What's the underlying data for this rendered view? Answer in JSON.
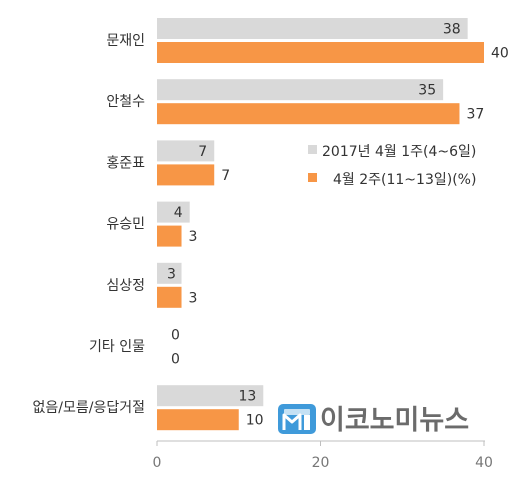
{
  "chart_data": {
    "type": "bar",
    "orientation": "horizontal",
    "categories": [
      "문재인",
      "안철수",
      "홍준표",
      "유승민",
      "심상정",
      "기타 인물",
      "없음/모름/응답거절"
    ],
    "series": [
      {
        "name": "2017년 4월 1주(4~6일)",
        "color": "#d9d9d9",
        "values": [
          38,
          35,
          7,
          4,
          3,
          0,
          13
        ]
      },
      {
        "name": "4월 2주(11~13일)(%)",
        "color": "#f79646",
        "values": [
          40,
          37,
          7,
          3,
          3,
          0,
          10
        ]
      }
    ],
    "xlim": [
      0,
      40
    ],
    "xticks": [
      0,
      20,
      40
    ],
    "grid": false,
    "legend_position": "right"
  },
  "watermark": {
    "text": "이코노미뉴스",
    "logo_color": "#2a8fd6"
  }
}
